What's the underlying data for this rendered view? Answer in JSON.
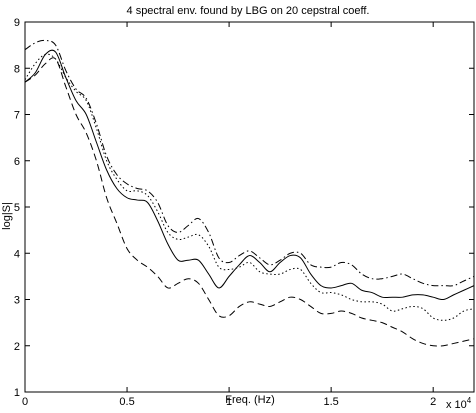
{
  "chart_data": {
    "type": "line",
    "title": "4 spectral env. found by LBG on 20 cepstral coeff.",
    "xlabel": "Freq. (Hz)",
    "ylabel": "log|S|",
    "x_multiplier_label": "x 10",
    "x_multiplier_exponent": "4",
    "xlim": [
      0,
      2.2
    ],
    "ylim": [
      1,
      9
    ],
    "x_unit_scale": 10000,
    "grid": false,
    "legend": "none",
    "xticks": [
      0,
      0.5,
      1,
      1.5,
      2
    ],
    "xtick_labels": [
      "0",
      "0.5",
      "1",
      "1.5",
      "2"
    ],
    "yticks": [
      1,
      2,
      3,
      4,
      5,
      6,
      7,
      8,
      9
    ],
    "ytick_labels": [
      "1",
      "2",
      "3",
      "4",
      "5",
      "6",
      "7",
      "8",
      "9"
    ],
    "series": [
      {
        "style": "solid",
        "color": "#000000",
        "x": [
          0,
          0.05,
          0.1,
          0.15,
          0.2,
          0.25,
          0.3,
          0.35,
          0.4,
          0.45,
          0.5,
          0.55,
          0.6,
          0.65,
          0.7,
          0.75,
          0.8,
          0.85,
          0.9,
          0.95,
          1.0,
          1.05,
          1.1,
          1.15,
          1.2,
          1.25,
          1.3,
          1.35,
          1.4,
          1.45,
          1.5,
          1.55,
          1.6,
          1.65,
          1.7,
          1.75,
          1.8,
          1.85,
          1.9,
          1.95,
          2.0,
          2.05,
          2.1,
          2.15,
          2.2
        ],
        "y": [
          7.7,
          7.9,
          8.3,
          8.35,
          7.8,
          7.3,
          7.0,
          6.4,
          5.8,
          5.4,
          5.2,
          5.15,
          5.1,
          4.7,
          4.2,
          3.85,
          3.85,
          3.85,
          3.55,
          3.25,
          3.5,
          3.75,
          3.95,
          3.8,
          3.6,
          3.8,
          3.95,
          3.9,
          3.55,
          3.3,
          3.25,
          3.3,
          3.35,
          3.2,
          3.15,
          3.05,
          3.05,
          3.05,
          3.1,
          3.1,
          3.05,
          3.0,
          3.1,
          3.2,
          3.3
        ]
      },
      {
        "style": "dotted",
        "color": "#000000",
        "x": [
          0,
          0.05,
          0.1,
          0.15,
          0.2,
          0.25,
          0.3,
          0.35,
          0.4,
          0.45,
          0.5,
          0.55,
          0.6,
          0.65,
          0.7,
          0.75,
          0.8,
          0.85,
          0.9,
          0.95,
          1.0,
          1.05,
          1.1,
          1.15,
          1.2,
          1.25,
          1.3,
          1.35,
          1.4,
          1.45,
          1.5,
          1.55,
          1.6,
          1.65,
          1.7,
          1.75,
          1.8,
          1.85,
          1.9,
          1.95,
          2.0,
          2.05,
          2.1,
          2.15,
          2.2
        ],
        "y": [
          7.75,
          8.1,
          8.3,
          8.2,
          7.8,
          7.5,
          7.3,
          6.7,
          6.0,
          5.6,
          5.35,
          5.35,
          5.25,
          4.9,
          4.45,
          4.3,
          4.35,
          4.4,
          4.15,
          3.7,
          3.65,
          3.7,
          3.8,
          3.6,
          3.55,
          3.55,
          3.65,
          3.65,
          3.35,
          3.15,
          3.15,
          3.1,
          3.0,
          2.95,
          2.95,
          2.9,
          2.75,
          2.8,
          2.85,
          2.8,
          2.6,
          2.55,
          2.6,
          2.75,
          2.8
        ]
      },
      {
        "style": "dashdot",
        "color": "#000000",
        "x": [
          0,
          0.05,
          0.1,
          0.15,
          0.2,
          0.25,
          0.3,
          0.35,
          0.4,
          0.45,
          0.5,
          0.55,
          0.6,
          0.65,
          0.7,
          0.75,
          0.8,
          0.85,
          0.9,
          0.95,
          1.0,
          1.05,
          1.1,
          1.15,
          1.2,
          1.25,
          1.3,
          1.35,
          1.4,
          1.45,
          1.5,
          1.55,
          1.6,
          1.65,
          1.7,
          1.75,
          1.8,
          1.85,
          1.9,
          1.95,
          2.0,
          2.05,
          2.1,
          2.15,
          2.2
        ],
        "y": [
          8.4,
          8.55,
          8.6,
          8.5,
          7.95,
          7.55,
          7.35,
          6.8,
          6.1,
          5.7,
          5.5,
          5.4,
          5.35,
          5.1,
          4.6,
          4.45,
          4.6,
          4.75,
          4.45,
          3.9,
          3.8,
          3.95,
          4.05,
          3.9,
          3.75,
          3.85,
          4.0,
          4.0,
          3.75,
          3.7,
          3.7,
          3.8,
          3.75,
          3.55,
          3.45,
          3.45,
          3.5,
          3.55,
          3.45,
          3.35,
          3.3,
          3.3,
          3.3,
          3.4,
          3.5
        ]
      },
      {
        "style": "dashed",
        "color": "#000000",
        "x": [
          0,
          0.05,
          0.1,
          0.15,
          0.2,
          0.25,
          0.3,
          0.35,
          0.4,
          0.45,
          0.5,
          0.55,
          0.6,
          0.65,
          0.7,
          0.75,
          0.8,
          0.85,
          0.9,
          0.95,
          1.0,
          1.05,
          1.1,
          1.15,
          1.2,
          1.25,
          1.3,
          1.35,
          1.4,
          1.45,
          1.5,
          1.55,
          1.6,
          1.65,
          1.7,
          1.75,
          1.8,
          1.85,
          1.9,
          1.95,
          2.0,
          2.05,
          2.1,
          2.15,
          2.2
        ],
        "y": [
          7.7,
          7.85,
          8.1,
          8.2,
          7.6,
          7.0,
          6.6,
          6.0,
          5.2,
          4.65,
          4.1,
          3.85,
          3.7,
          3.5,
          3.25,
          3.35,
          3.45,
          3.35,
          3.0,
          2.65,
          2.65,
          2.85,
          2.95,
          2.9,
          2.85,
          2.95,
          3.05,
          3.0,
          2.85,
          2.7,
          2.7,
          2.75,
          2.7,
          2.6,
          2.55,
          2.5,
          2.4,
          2.3,
          2.15,
          2.05,
          2.0,
          2.0,
          2.05,
          2.1,
          2.15
        ]
      }
    ]
  }
}
